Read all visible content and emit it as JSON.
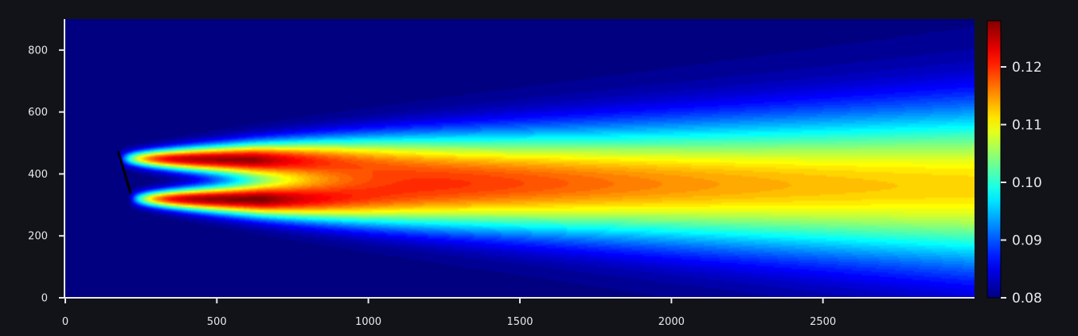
{
  "colors": {
    "background": "#111319",
    "foreground": "#e8e8e8",
    "plot_floor": "#00008b",
    "wake_edge": "#000000"
  },
  "chart_data": {
    "type": "heatmap",
    "title": "",
    "xlabel": "",
    "ylabel": "",
    "xlim": [
      0,
      3000
    ],
    "ylim": [
      0,
      900
    ],
    "x_ticks": [
      {
        "value": 0,
        "label": "0"
      },
      {
        "value": 500,
        "label": "500"
      },
      {
        "value": 1000,
        "label": "1000"
      },
      {
        "value": 1500,
        "label": "1500"
      },
      {
        "value": 2000,
        "label": "2000"
      },
      {
        "value": 2500,
        "label": "2500"
      }
    ],
    "y_ticks": [
      {
        "value": 0,
        "label": "0"
      },
      {
        "value": 200,
        "label": "200"
      },
      {
        "value": 400,
        "label": "400"
      },
      {
        "value": 600,
        "label": "600"
      },
      {
        "value": 800,
        "label": "800"
      }
    ],
    "colorbar": {
      "colormap": "jet",
      "range": [
        0.08,
        0.128
      ],
      "ticks": [
        {
          "value": 0.08,
          "label": "0.08"
        },
        {
          "value": 0.09,
          "label": "0.09"
        },
        {
          "value": 0.1,
          "label": "0.10"
        },
        {
          "value": 0.11,
          "label": "0.11"
        },
        {
          "value": 0.12,
          "label": "0.12"
        }
      ]
    },
    "background_value": 0.08,
    "plumes": [
      {
        "source_x": 175,
        "center_y": 450,
        "peak_x": 620,
        "peak_value": 0.127,
        "far_field_value": 0.096,
        "end_x": 3000,
        "end_center_y": 420
      },
      {
        "source_x": 210,
        "center_y": 320,
        "peak_x": 650,
        "peak_value": 0.128,
        "far_field_value": 0.096,
        "end_x": 3000,
        "end_center_y": 300
      }
    ],
    "source_line": {
      "x1": 175,
      "y1": 470,
      "x2": 215,
      "y2": 340
    }
  }
}
